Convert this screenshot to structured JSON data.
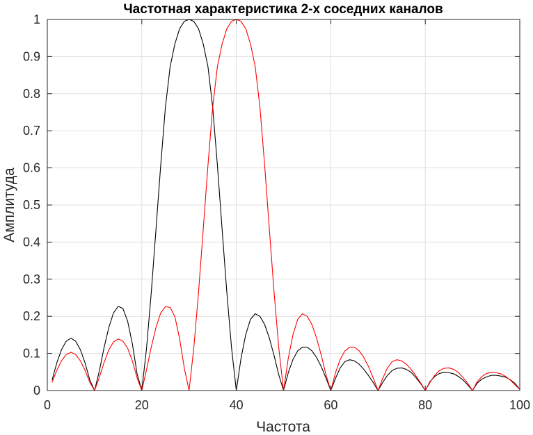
{
  "chart_data": {
    "type": "line",
    "title": "Частотная характеристика 2-х соседних каналов",
    "xlabel": "Частота",
    "ylabel": "Амплитуда",
    "xlim": [
      0,
      100
    ],
    "ylim": [
      0,
      1
    ],
    "xticks": [
      0,
      20,
      40,
      60,
      80,
      100
    ],
    "yticks": [
      0,
      0.1,
      0.2,
      0.3,
      0.4,
      0.5,
      0.6,
      0.7,
      0.8,
      0.9,
      1
    ],
    "grid": true,
    "legend": "none",
    "series": [
      {
        "color": "#000000",
        "x": [
          1,
          2,
          3,
          4,
          5,
          6,
          7,
          8,
          9,
          10,
          11,
          12,
          13,
          14,
          15,
          16,
          17,
          18,
          19,
          20,
          21,
          22,
          23,
          24,
          25,
          26,
          27,
          28,
          29,
          30,
          31,
          32,
          33,
          34,
          35,
          36,
          37,
          38,
          39,
          40,
          41,
          42,
          43,
          44,
          45,
          46,
          47,
          48,
          49,
          50,
          51,
          52,
          53,
          54,
          55,
          56,
          57,
          58,
          59,
          60,
          61,
          62,
          63,
          64,
          65,
          66,
          67,
          68,
          69,
          70,
          71,
          72,
          73,
          74,
          75,
          76,
          77,
          78,
          79,
          80,
          81,
          82,
          83,
          84,
          85,
          86,
          87,
          88,
          89,
          90,
          91,
          92,
          93,
          94,
          95,
          96,
          97,
          98,
          99,
          100
        ],
        "values": [
          0.028,
          0.074,
          0.11,
          0.133,
          0.141,
          0.133,
          0.11,
          0.074,
          0.028,
          0,
          0.052,
          0.115,
          0.169,
          0.209,
          0.227,
          0.221,
          0.187,
          0.126,
          0.045,
          0,
          0.114,
          0.264,
          0.434,
          0.607,
          0.764,
          0.873,
          0.934,
          0.975,
          0.995,
          1,
          0.995,
          0.975,
          0.934,
          0.873,
          0.764,
          0.607,
          0.434,
          0.264,
          0.114,
          0,
          0.087,
          0.151,
          0.192,
          0.207,
          0.2,
          0.178,
          0.141,
          0.094,
          0.042,
          0,
          0.048,
          0.084,
          0.107,
          0.117,
          0.117,
          0.107,
          0.089,
          0.064,
          0.033,
          0,
          0.033,
          0.061,
          0.078,
          0.083,
          0.08,
          0.071,
          0.057,
          0.04,
          0.021,
          0,
          0.022,
          0.041,
          0.054,
          0.06,
          0.061,
          0.057,
          0.049,
          0.035,
          0.019,
          0,
          0.024,
          0.038,
          0.046,
          0.049,
          0.048,
          0.045,
          0.038,
          0.028,
          0.015,
          0,
          0.02,
          0.031,
          0.037,
          0.041,
          0.041,
          0.039,
          0.036,
          0.029,
          0.019,
          0.003
        ]
      },
      {
        "color": "#ff0000",
        "x": [
          1,
          2,
          3,
          4,
          5,
          6,
          7,
          8,
          9,
          10,
          11,
          12,
          13,
          14,
          15,
          16,
          17,
          18,
          19,
          20,
          21,
          22,
          23,
          24,
          25,
          26,
          27,
          28,
          29,
          30,
          31,
          32,
          33,
          34,
          35,
          36,
          37,
          38,
          39,
          40,
          41,
          42,
          43,
          44,
          45,
          46,
          47,
          48,
          49,
          50,
          51,
          52,
          53,
          54,
          55,
          56,
          57,
          58,
          59,
          60,
          61,
          62,
          63,
          64,
          65,
          66,
          67,
          68,
          69,
          70,
          71,
          72,
          73,
          74,
          75,
          76,
          77,
          78,
          79,
          80,
          81,
          82,
          83,
          84,
          85,
          86,
          87,
          88,
          89,
          90,
          91,
          92,
          93,
          94,
          95,
          96,
          97,
          98,
          99,
          100
        ],
        "values": [
          0.022,
          0.054,
          0.08,
          0.097,
          0.103,
          0.097,
          0.08,
          0.054,
          0.022,
          0,
          0.035,
          0.075,
          0.109,
          0.131,
          0.139,
          0.133,
          0.114,
          0.08,
          0.034,
          0,
          0.056,
          0.117,
          0.17,
          0.209,
          0.226,
          0.224,
          0.199,
          0.14,
          0.06,
          0,
          0.114,
          0.264,
          0.434,
          0.607,
          0.764,
          0.873,
          0.934,
          0.975,
          0.995,
          1,
          0.995,
          0.975,
          0.934,
          0.873,
          0.764,
          0.607,
          0.434,
          0.264,
          0.114,
          0,
          0.087,
          0.151,
          0.192,
          0.207,
          0.2,
          0.178,
          0.141,
          0.094,
          0.042,
          0,
          0.048,
          0.084,
          0.107,
          0.117,
          0.117,
          0.107,
          0.089,
          0.064,
          0.033,
          0,
          0.033,
          0.061,
          0.078,
          0.083,
          0.08,
          0.071,
          0.057,
          0.04,
          0.021,
          0,
          0.022,
          0.041,
          0.054,
          0.06,
          0.061,
          0.057,
          0.049,
          0.035,
          0.019,
          0,
          0.024,
          0.038,
          0.046,
          0.049,
          0.048,
          0.045,
          0.038,
          0.028,
          0.015,
          0.003
        ]
      }
    ]
  }
}
